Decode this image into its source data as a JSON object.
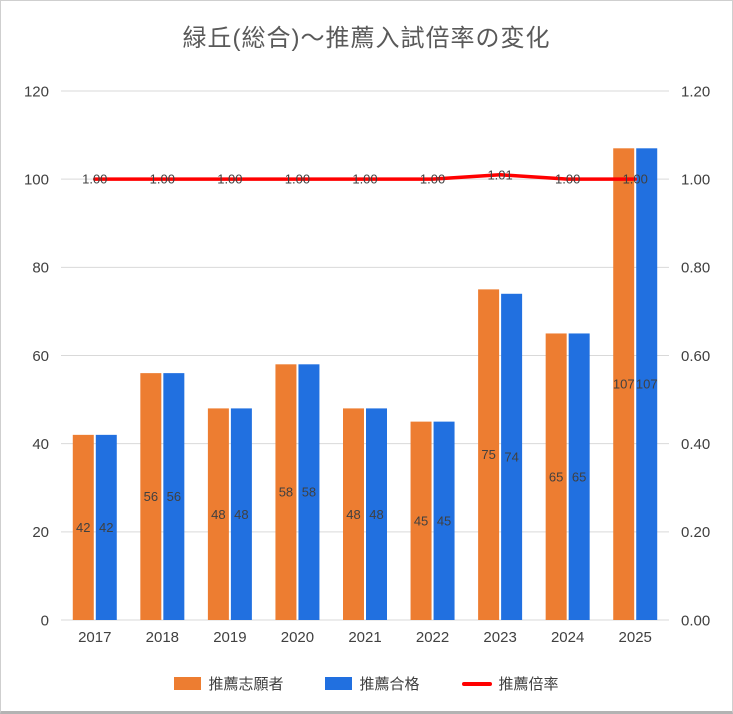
{
  "chart_data": {
    "type": "bar",
    "subtype": "grouped-bars-with-line",
    "title": "緑丘(総合)～推薦入試倍率の変化",
    "categories": [
      "2017",
      "2018",
      "2019",
      "2020",
      "2021",
      "2022",
      "2023",
      "2024",
      "2025"
    ],
    "series": [
      {
        "name": "推薦志願者",
        "type": "bar",
        "axis": "left",
        "color": "#ED7D31",
        "values": [
          42,
          56,
          48,
          58,
          48,
          45,
          75,
          65,
          107
        ]
      },
      {
        "name": "推薦合格",
        "type": "bar",
        "axis": "left",
        "color": "#2170E0",
        "values": [
          42,
          56,
          48,
          58,
          48,
          45,
          74,
          65,
          107
        ]
      },
      {
        "name": "推薦倍率",
        "type": "line",
        "axis": "right",
        "color": "#FF0000",
        "values": [
          1.0,
          1.0,
          1.0,
          1.0,
          1.0,
          1.0,
          1.01,
          1.0,
          1.0
        ]
      }
    ],
    "line_labels": [
      "1.00",
      "1.00",
      "1.00",
      "1.00",
      "1.00",
      "1.00",
      "1.01",
      "1.00",
      "1.00"
    ],
    "left_axis": {
      "min": 0,
      "max": 120,
      "step": 20,
      "ticks": [
        "0",
        "20",
        "40",
        "60",
        "80",
        "100",
        "120"
      ]
    },
    "right_axis": {
      "min": 0,
      "max": 1.2,
      "step": 0.2,
      "ticks": [
        "0.00",
        "0.20",
        "0.40",
        "0.60",
        "0.80",
        "1.00",
        "1.20"
      ]
    },
    "grid": true,
    "gridline_color": "#D9D9D9",
    "label_color": "#404040",
    "title_color": "#595959",
    "legend_position": "bottom"
  }
}
